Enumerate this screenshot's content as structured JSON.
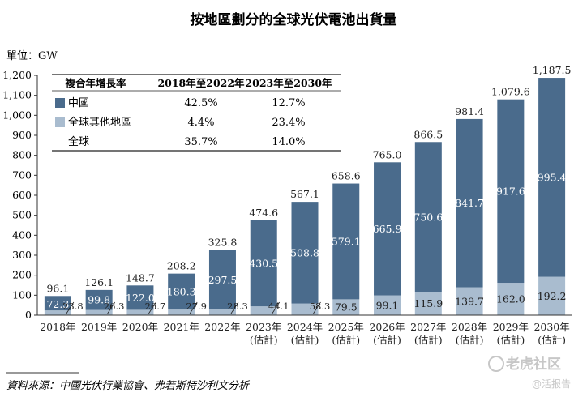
{
  "chart_data": {
    "type": "bar",
    "stacked": true,
    "title": "按地區劃分的全球光伏電池出貨量",
    "unit_label": "單位：GW",
    "ylim": [
      0,
      1200
    ],
    "yticks": [
      "0",
      "100",
      "200",
      "300",
      "400",
      "500",
      "600",
      "700",
      "800",
      "900",
      "1,000",
      "1,100",
      "1,200"
    ],
    "grid": false,
    "categories": [
      [
        "2018年"
      ],
      [
        "2019年"
      ],
      [
        "2020年"
      ],
      [
        "2021年"
      ],
      [
        "2022年"
      ],
      [
        "2023年",
        "(估計)"
      ],
      [
        "2024年",
        "(估計)"
      ],
      [
        "2025年",
        "(估計)"
      ],
      [
        "2026年",
        "(估計)"
      ],
      [
        "2027年",
        "(估計)"
      ],
      [
        "2028年",
        "(估計)"
      ],
      [
        "2029年",
        "(估計)"
      ],
      [
        "2030年",
        "(估計)"
      ]
    ],
    "series": [
      {
        "name": "中國",
        "color": "#4a6b8c",
        "values": [
          72.3,
          99.8,
          122.0,
          180.3,
          297.5,
          430.5,
          508.8,
          579.1,
          665.9,
          750.6,
          841.7,
          917.6,
          995.4
        ],
        "labels": [
          "72.3",
          "99.8",
          "122.0",
          "180.3",
          "297.5",
          "430.5",
          "508.8",
          "579.1",
          "665.9",
          "750.6",
          "841.7",
          "917.6",
          "995.4"
        ]
      },
      {
        "name": "全球其他地區",
        "color": "#a9bccf",
        "values": [
          23.8,
          26.3,
          26.7,
          27.9,
          28.3,
          44.1,
          58.3,
          79.5,
          99.1,
          115.9,
          139.7,
          162.0,
          192.2
        ],
        "labels": [
          "23.8",
          "26.3",
          "26.7",
          "27.9",
          "28.3",
          "44.1",
          "58.3",
          "79.5",
          "99.1",
          "115.9",
          "139.7",
          "162.0",
          "192.2"
        ]
      }
    ],
    "totals": [
      96.1,
      126.1,
      148.7,
      208.2,
      325.8,
      474.6,
      567.1,
      658.6,
      765.0,
      866.5,
      981.4,
      1079.6,
      1187.5
    ],
    "total_labels": [
      "96.1",
      "126.1",
      "148.7",
      "208.2",
      "325.8",
      "474.6",
      "567.1",
      "658.6",
      "765.0",
      "866.5",
      "981.4",
      "1,079.6",
      "1,187.5"
    ],
    "cagr_table": {
      "headers": [
        "複合年增長率",
        "2018年至2022年",
        "2023年至2030年"
      ],
      "rows": [
        {
          "label": "中國",
          "swatch": "#4a6b8c",
          "values": [
            "42.5%",
            "12.7%"
          ]
        },
        {
          "label": "全球其他地區",
          "swatch": "#a9bccf",
          "values": [
            "4.4%",
            "23.4%"
          ]
        },
        {
          "label": "全球",
          "swatch": "",
          "values": [
            "35.7%",
            "14.0%"
          ]
        }
      ]
    },
    "source": "資料來源：中國光伏行業協會、弗若斯特沙利文分析"
  },
  "watermark": {
    "brand": "老虎社区",
    "handle": "@活报告"
  }
}
